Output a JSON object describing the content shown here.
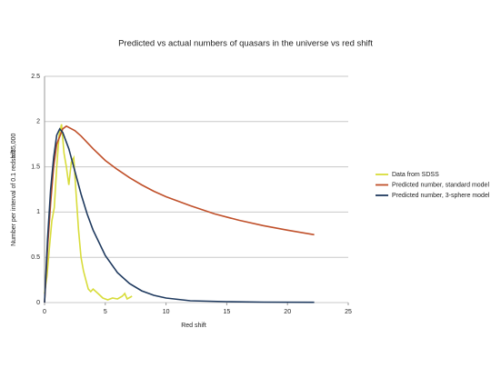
{
  "chart_data": {
    "type": "line",
    "title": "Predicted vs actual numbers of quasars in the universe vs red shift",
    "x_label": "Red shift",
    "y_label": "Number per interval of 0.1 redshift",
    "y_unit": "x 35,000",
    "xlim": [
      0,
      25
    ],
    "xticks": [
      0,
      5,
      10,
      15,
      20,
      25
    ],
    "ylim": [
      0,
      2.5
    ],
    "yticks": [
      0,
      0.5,
      1,
      1.5,
      2,
      2.5
    ],
    "grid": true,
    "legend": "right",
    "series": [
      {
        "name": "Data from SDSS",
        "color": "#d8dc3a",
        "x": [
          0,
          0.2,
          0.4,
          0.6,
          0.8,
          1.0,
          1.2,
          1.4,
          1.6,
          1.8,
          2.0,
          2.2,
          2.4,
          2.6,
          2.8,
          3.0,
          3.2,
          3.4,
          3.6,
          3.8,
          4.0,
          4.4,
          4.8,
          5.2,
          5.6,
          6.0,
          6.4,
          6.6,
          6.8,
          7.2
        ],
        "values": [
          0.1,
          0.3,
          0.6,
          0.9,
          1.05,
          1.5,
          1.85,
          1.97,
          1.65,
          1.5,
          1.3,
          1.55,
          1.6,
          1.2,
          0.8,
          0.5,
          0.35,
          0.25,
          0.15,
          0.12,
          0.15,
          0.1,
          0.05,
          0.03,
          0.05,
          0.04,
          0.07,
          0.1,
          0.04,
          0.07
        ]
      },
      {
        "name": "Predicted number, standard model",
        "color": "#c0502a",
        "x": [
          0,
          0.25,
          0.5,
          0.75,
          1,
          1.5,
          1.8,
          2.5,
          3,
          4,
          5,
          6,
          7,
          8,
          9,
          10,
          12,
          14,
          16,
          18,
          20,
          22.2
        ],
        "values": [
          0,
          0.6,
          1.1,
          1.5,
          1.75,
          1.92,
          1.95,
          1.9,
          1.84,
          1.7,
          1.57,
          1.47,
          1.38,
          1.3,
          1.23,
          1.17,
          1.07,
          0.98,
          0.91,
          0.85,
          0.8,
          0.75
        ]
      },
      {
        "name": "Predicted number, 3-sphere model",
        "color": "#1f3a5f",
        "x": [
          0,
          0.25,
          0.5,
          0.75,
          1,
          1.25,
          1.5,
          2,
          2.5,
          3,
          3.5,
          4,
          5,
          6,
          7,
          8,
          9,
          10,
          12,
          15,
          18,
          22.2
        ],
        "values": [
          0,
          0.7,
          1.25,
          1.6,
          1.85,
          1.92,
          1.88,
          1.7,
          1.45,
          1.2,
          0.98,
          0.8,
          0.52,
          0.33,
          0.21,
          0.13,
          0.08,
          0.05,
          0.02,
          0.01,
          0.005,
          0.003
        ]
      }
    ]
  }
}
